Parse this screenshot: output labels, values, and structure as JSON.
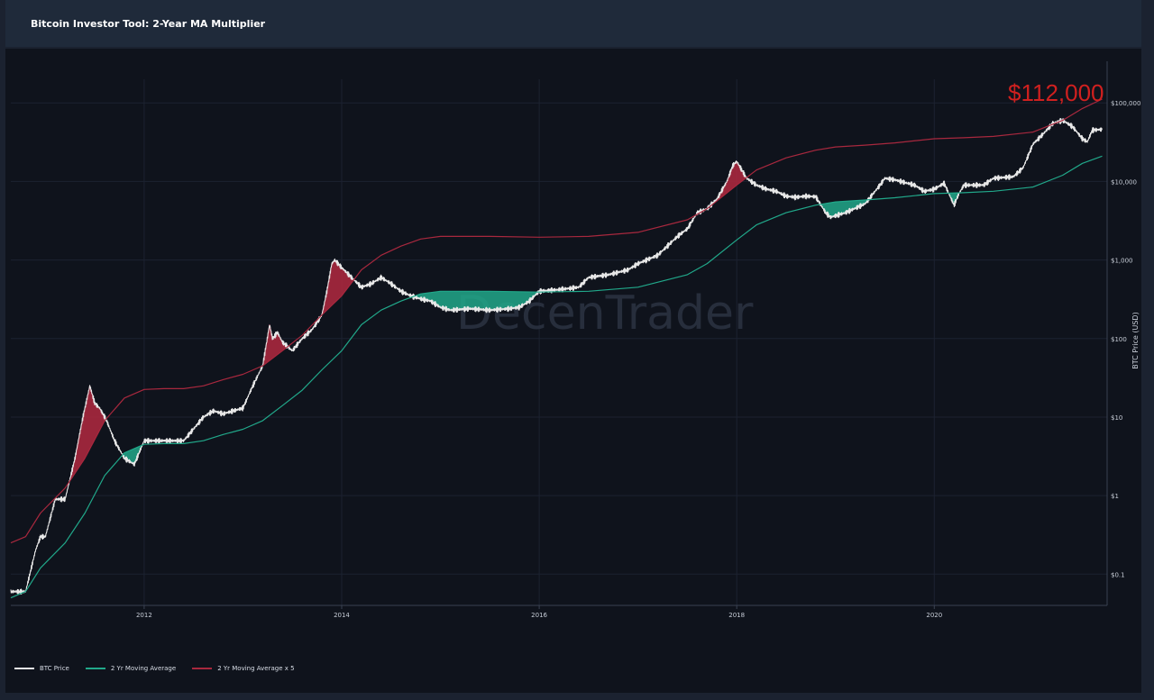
{
  "header": {
    "title": "Bitcoin Investor Tool: 2-Year MA Multiplier"
  },
  "annotation": {
    "text": "$112,000",
    "color": "#d0201f"
  },
  "watermark": {
    "text": "DecenTrader"
  },
  "chart_data": {
    "type": "line",
    "title": "Bitcoin Investor Tool: 2-Year MA Multiplier",
    "xlabel": "",
    "ylabel": "BTC Price (USD)",
    "y_scale": "log",
    "ylim": [
      0.04,
      200000
    ],
    "xlim": [
      2010.65,
      2021.75
    ],
    "x_ticks": [
      2012,
      2014,
      2016,
      2018,
      2020
    ],
    "x_tick_labels": [
      "2012",
      "2014",
      "2016",
      "2018",
      "2020"
    ],
    "y_ticks": [
      0.1,
      1,
      10,
      100,
      1000,
      10000,
      100000
    ],
    "y_tick_labels": [
      "$0.1",
      "$1",
      "$10",
      "$100",
      "$1,000",
      "$10,000",
      "$100,000"
    ],
    "grid": true,
    "legend_position": "bottom-left",
    "series": [
      {
        "name": "BTC Price",
        "color": "#e8e8e8",
        "x": [
          2010.65,
          2010.8,
          2010.9,
          2010.95,
          2011.0,
          2011.1,
          2011.2,
          2011.3,
          2011.38,
          2011.45,
          2011.5,
          2011.55,
          2011.62,
          2011.7,
          2011.8,
          2011.9,
          2012.0,
          2012.1,
          2012.2,
          2012.4,
          2012.6,
          2012.7,
          2012.8,
          2012.9,
          2013.0,
          2013.1,
          2013.2,
          2013.27,
          2013.3,
          2013.35,
          2013.4,
          2013.5,
          2013.6,
          2013.7,
          2013.8,
          2013.85,
          2013.9,
          2013.93,
          2014.0,
          2014.1,
          2014.2,
          2014.3,
          2014.4,
          2014.5,
          2014.6,
          2014.7,
          2014.8,
          2014.9,
          2015.0,
          2015.1,
          2015.3,
          2015.5,
          2015.7,
          2015.8,
          2015.9,
          2016.0,
          2016.2,
          2016.4,
          2016.5,
          2016.7,
          2016.9,
          2017.0,
          2017.2,
          2017.4,
          2017.5,
          2017.6,
          2017.7,
          2017.8,
          2017.9,
          2017.96,
          2018.0,
          2018.1,
          2018.2,
          2018.3,
          2018.4,
          2018.5,
          2018.6,
          2018.7,
          2018.8,
          2018.9,
          2018.95,
          2019.1,
          2019.3,
          2019.45,
          2019.5,
          2019.6,
          2019.8,
          2019.9,
          2020.0,
          2020.1,
          2020.2,
          2020.25,
          2020.3,
          2020.5,
          2020.6,
          2020.8,
          2020.9,
          2021.0,
          2021.1,
          2021.2,
          2021.3,
          2021.4,
          2021.5,
          2021.55,
          2021.6,
          2021.7
        ],
        "y": [
          0.06,
          0.06,
          0.2,
          0.3,
          0.3,
          0.9,
          0.9,
          3,
          10,
          25,
          15,
          13,
          9,
          5,
          3,
          2.5,
          5,
          5,
          5,
          5,
          10,
          12,
          11,
          12,
          13,
          25,
          45,
          150,
          100,
          120,
          90,
          70,
          100,
          130,
          200,
          400,
          900,
          1000,
          800,
          600,
          450,
          500,
          600,
          500,
          400,
          350,
          320,
          300,
          250,
          230,
          240,
          230,
          240,
          250,
          300,
          400,
          420,
          450,
          600,
          650,
          750,
          900,
          1150,
          2000,
          2500,
          4000,
          4500,
          6000,
          10000,
          16000,
          18000,
          11000,
          9000,
          8000,
          7500,
          6500,
          6300,
          6500,
          6400,
          4000,
          3500,
          4000,
          5200,
          9000,
          11000,
          10500,
          9000,
          7500,
          8000,
          9500,
          5000,
          7000,
          9000,
          9000,
          11000,
          11500,
          15000,
          30000,
          40000,
          55000,
          60000,
          50000,
          35000,
          32000,
          45000,
          46000
        ]
      },
      {
        "name": "2 Yr Moving Average",
        "color": "#21a88a",
        "x": [
          2010.65,
          2010.8,
          2010.95,
          2011.2,
          2011.4,
          2011.6,
          2011.8,
          2012.0,
          2012.2,
          2012.4,
          2012.6,
          2012.8,
          2013.0,
          2013.2,
          2013.4,
          2013.6,
          2013.8,
          2014.0,
          2014.2,
          2014.4,
          2014.6,
          2014.8,
          2015.0,
          2015.5,
          2016.0,
          2016.5,
          2017.0,
          2017.5,
          2017.7,
          2018.0,
          2018.2,
          2018.5,
          2018.8,
          2019.0,
          2019.3,
          2019.6,
          2020.0,
          2020.3,
          2020.6,
          2021.0,
          2021.3,
          2021.5,
          2021.7
        ],
        "y": [
          0.05,
          0.06,
          0.12,
          0.25,
          0.6,
          1.8,
          3.5,
          4.5,
          4.6,
          4.6,
          5,
          6,
          7,
          9,
          14,
          22,
          40,
          70,
          150,
          230,
          300,
          370,
          400,
          400,
          390,
          400,
          450,
          650,
          900,
          1800,
          2800,
          4000,
          5000,
          5500,
          5800,
          6200,
          7000,
          7200,
          7500,
          8500,
          12000,
          17000,
          21000
        ]
      },
      {
        "name": "2 Yr Moving Average x 5",
        "color": "#a8283e",
        "x": [
          2010.65,
          2010.8,
          2010.95,
          2011.2,
          2011.4,
          2011.6,
          2011.8,
          2012.0,
          2012.2,
          2012.4,
          2012.6,
          2012.8,
          2013.0,
          2013.2,
          2013.4,
          2013.6,
          2013.8,
          2014.0,
          2014.2,
          2014.4,
          2014.6,
          2014.8,
          2015.0,
          2015.5,
          2016.0,
          2016.5,
          2017.0,
          2017.5,
          2017.7,
          2018.0,
          2018.2,
          2018.5,
          2018.8,
          2019.0,
          2019.3,
          2019.6,
          2020.0,
          2020.3,
          2020.6,
          2021.0,
          2021.3,
          2021.5,
          2021.7
        ],
        "y": [
          0.25,
          0.3,
          0.6,
          1.25,
          3,
          9,
          17.5,
          22.5,
          23,
          23,
          25,
          30,
          35,
          45,
          70,
          110,
          200,
          350,
          750,
          1150,
          1500,
          1850,
          2000,
          2000,
          1950,
          2000,
          2250,
          3250,
          4500,
          9000,
          14000,
          20000,
          25000,
          27500,
          29000,
          31000,
          35000,
          36000,
          37500,
          42500,
          60000,
          85000,
          112000
        ]
      }
    ]
  }
}
